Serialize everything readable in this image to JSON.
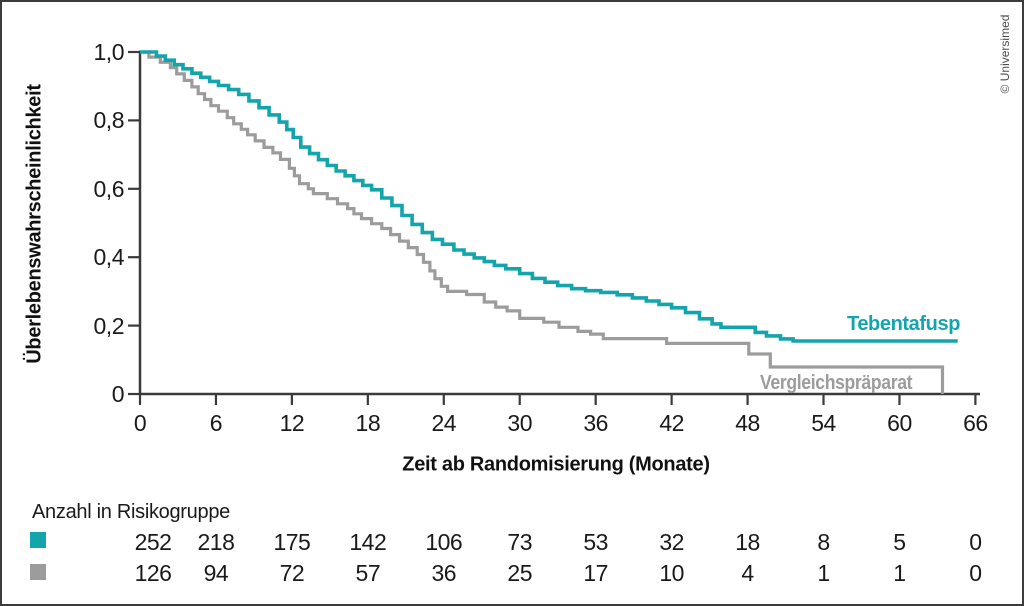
{
  "copyright": "© Universimed",
  "colors": {
    "teal": "#14a5ac",
    "gray": "#9c9c9c",
    "axis": "#3a3a3a",
    "text": "#1a1a1a",
    "frame_border": "#3c3c3c",
    "background": "#ffffff"
  },
  "chart_data": {
    "type": "line",
    "subtype": "kaplan-meier-step",
    "title": "",
    "xlabel": "Zeit ab Randomisierung (Monate)",
    "ylabel": "Überlebenswahrscheinlichkeit",
    "xlim": [
      0,
      66
    ],
    "ylim": [
      0,
      1
    ],
    "grid": false,
    "x_ticks": {
      "values": [
        0,
        6,
        12,
        18,
        24,
        30,
        36,
        42,
        48,
        54,
        60,
        66
      ],
      "labels": [
        "0",
        "6",
        "12",
        "18",
        "24",
        "30",
        "36",
        "42",
        "48",
        "54",
        "60",
        "66"
      ]
    },
    "y_ticks": {
      "values": [
        1.0,
        0.8,
        0.6,
        0.4,
        0.2,
        0
      ],
      "labels": [
        "1,0",
        "0,8",
        "0,6",
        "0,4",
        "0,2",
        "0"
      ]
    },
    "series": [
      {
        "name": "Tebentafusp",
        "color": "#14a5ac",
        "end_t": 64.6,
        "points": [
          [
            0,
            1.0
          ],
          [
            1.3,
            0.988
          ],
          [
            2.0,
            0.976
          ],
          [
            2.7,
            0.963
          ],
          [
            3.4,
            0.951
          ],
          [
            4.1,
            0.938
          ],
          [
            4.8,
            0.926
          ],
          [
            5.5,
            0.914
          ],
          [
            6.2,
            0.902
          ],
          [
            7.0,
            0.89
          ],
          [
            7.8,
            0.876
          ],
          [
            8.6,
            0.857
          ],
          [
            9.4,
            0.837
          ],
          [
            10.2,
            0.816
          ],
          [
            11.0,
            0.795
          ],
          [
            11.6,
            0.773
          ],
          [
            12.1,
            0.75
          ],
          [
            12.7,
            0.722
          ],
          [
            13.4,
            0.703
          ],
          [
            14.1,
            0.685
          ],
          [
            14.8,
            0.668
          ],
          [
            15.5,
            0.652
          ],
          [
            16.2,
            0.638
          ],
          [
            16.9,
            0.624
          ],
          [
            17.6,
            0.61
          ],
          [
            18.3,
            0.597
          ],
          [
            19.1,
            0.573
          ],
          [
            19.9,
            0.551
          ],
          [
            20.7,
            0.522
          ],
          [
            21.5,
            0.496
          ],
          [
            22.3,
            0.472
          ],
          [
            23.1,
            0.452
          ],
          [
            23.9,
            0.438
          ],
          [
            24.8,
            0.421
          ],
          [
            25.6,
            0.409
          ],
          [
            26.4,
            0.398
          ],
          [
            27.2,
            0.387
          ],
          [
            28.0,
            0.376
          ],
          [
            28.9,
            0.366
          ],
          [
            30.0,
            0.352
          ],
          [
            31.0,
            0.338
          ],
          [
            32.0,
            0.327
          ],
          [
            33.0,
            0.317
          ],
          [
            34.1,
            0.308
          ],
          [
            35.2,
            0.302
          ],
          [
            36.4,
            0.297
          ],
          [
            37.7,
            0.29
          ],
          [
            38.9,
            0.281
          ],
          [
            40.0,
            0.272
          ],
          [
            41.0,
            0.262
          ],
          [
            42.0,
            0.252
          ],
          [
            43.1,
            0.238
          ],
          [
            44.2,
            0.22
          ],
          [
            45.2,
            0.205
          ],
          [
            45.9,
            0.195
          ],
          [
            48.6,
            0.18
          ],
          [
            49.5,
            0.17
          ],
          [
            50.6,
            0.161
          ],
          [
            51.6,
            0.155
          ]
        ]
      },
      {
        "name": "Vergleichspräparat",
        "color": "#9c9c9c",
        "end_t": 63.4,
        "points": [
          [
            0,
            1.0
          ],
          [
            0.7,
            0.985
          ],
          [
            1.6,
            0.97
          ],
          [
            2.4,
            0.954
          ],
          [
            2.9,
            0.936
          ],
          [
            3.5,
            0.917
          ],
          [
            4.1,
            0.898
          ],
          [
            4.6,
            0.878
          ],
          [
            5.1,
            0.861
          ],
          [
            5.6,
            0.843
          ],
          [
            6.2,
            0.827
          ],
          [
            6.9,
            0.808
          ],
          [
            7.4,
            0.79
          ],
          [
            8.0,
            0.774
          ],
          [
            8.5,
            0.758
          ],
          [
            9.1,
            0.74
          ],
          [
            9.8,
            0.721
          ],
          [
            10.5,
            0.705
          ],
          [
            11.1,
            0.686
          ],
          [
            11.8,
            0.66
          ],
          [
            12.2,
            0.638
          ],
          [
            12.6,
            0.615
          ],
          [
            13.3,
            0.6
          ],
          [
            13.7,
            0.586
          ],
          [
            14.8,
            0.571
          ],
          [
            15.6,
            0.556
          ],
          [
            16.4,
            0.542
          ],
          [
            16.9,
            0.527
          ],
          [
            17.5,
            0.513
          ],
          [
            18.3,
            0.498
          ],
          [
            19.1,
            0.484
          ],
          [
            19.8,
            0.466
          ],
          [
            20.5,
            0.447
          ],
          [
            21.2,
            0.428
          ],
          [
            21.9,
            0.408
          ],
          [
            22.4,
            0.385
          ],
          [
            22.9,
            0.36
          ],
          [
            23.3,
            0.337
          ],
          [
            23.8,
            0.315
          ],
          [
            24.3,
            0.3
          ],
          [
            25.8,
            0.291
          ],
          [
            27.2,
            0.269
          ],
          [
            28.1,
            0.254
          ],
          [
            29.0,
            0.243
          ],
          [
            30.0,
            0.221
          ],
          [
            31.9,
            0.21
          ],
          [
            33.1,
            0.195
          ],
          [
            34.6,
            0.183
          ],
          [
            35.6,
            0.175
          ],
          [
            36.6,
            0.162
          ],
          [
            41.6,
            0.148
          ],
          [
            48.1,
            0.117
          ],
          [
            49.8,
            0.079
          ],
          [
            63.4,
            0.0
          ]
        ]
      }
    ],
    "risk_table": {
      "title": "Anzahl in Risikogruppe",
      "time_points": [
        0,
        6,
        12,
        18,
        24,
        30,
        36,
        42,
        48,
        54,
        60,
        66
      ],
      "rows": [
        {
          "series": "Tebentafusp",
          "color": "#14a5ac",
          "counts": [
            "252",
            "218",
            "175",
            "142",
            "106",
            "73",
            "53",
            "32",
            "18",
            "8",
            "5",
            "0"
          ]
        },
        {
          "series": "Vergleichspräparat",
          "color": "#9c9c9c",
          "counts": [
            "126",
            "94",
            "72",
            "57",
            "36",
            "25",
            "17",
            "10",
            "4",
            "1",
            "1",
            "0"
          ]
        }
      ]
    }
  }
}
